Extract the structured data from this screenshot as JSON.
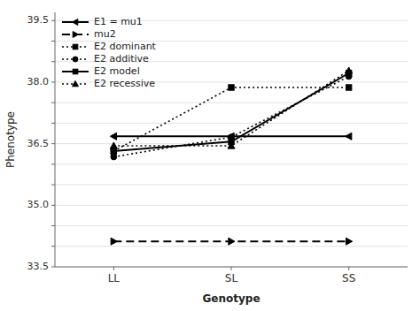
{
  "chart_data": {
    "type": "line",
    "categories": [
      "LL",
      "SL",
      "SS"
    ],
    "series": [
      {
        "name": "E1 = mu1",
        "color": "black",
        "marker": "triangle-left",
        "line_style": "solid",
        "values": [
          36.68,
          36.68,
          36.68
        ]
      },
      {
        "name": "mu2",
        "color": "black",
        "marker": "triangle-right",
        "line_style": "dashed",
        "values": [
          34.12,
          34.12,
          34.12
        ]
      },
      {
        "name": "E2 dominant",
        "color": "black",
        "marker": "square",
        "line_style": "dotted",
        "values": [
          36.32,
          37.87,
          37.87
        ]
      },
      {
        "name": "E2 additive",
        "color": "black",
        "marker": "circle",
        "line_style": "dotted",
        "values": [
          36.18,
          36.66,
          38.14
        ]
      },
      {
        "name": "E2 model",
        "color": "black",
        "marker": "square",
        "line_style": "solid",
        "values": [
          36.32,
          36.55,
          38.22
        ]
      },
      {
        "name": "E2 recessive",
        "color": "black",
        "marker": "triangle-up",
        "line_style": "dotted",
        "values": [
          36.45,
          36.45,
          38.28
        ]
      }
    ],
    "xlabel": "Genotype",
    "ylabel": "Phenotype",
    "ylim": [
      33.5,
      39.7
    ],
    "yticks": [
      33.5,
      {
        "value": 34,
        "label": null
      },
      {
        "value": 34.5,
        "label": null
      },
      {
        "value": 35,
        "label": "35.0"
      },
      {
        "value": 35.5,
        "label": null
      },
      {
        "value": 36,
        "label": null
      },
      36.5,
      {
        "value": 37,
        "label": null
      },
      {
        "value": 37.5,
        "label": null
      },
      {
        "value": 38,
        "label": "38.0"
      },
      {
        "value": 38.5,
        "label": null
      },
      {
        "value": 39,
        "label": null
      },
      39.5
    ],
    "grid": true,
    "legend": "upper left"
  }
}
